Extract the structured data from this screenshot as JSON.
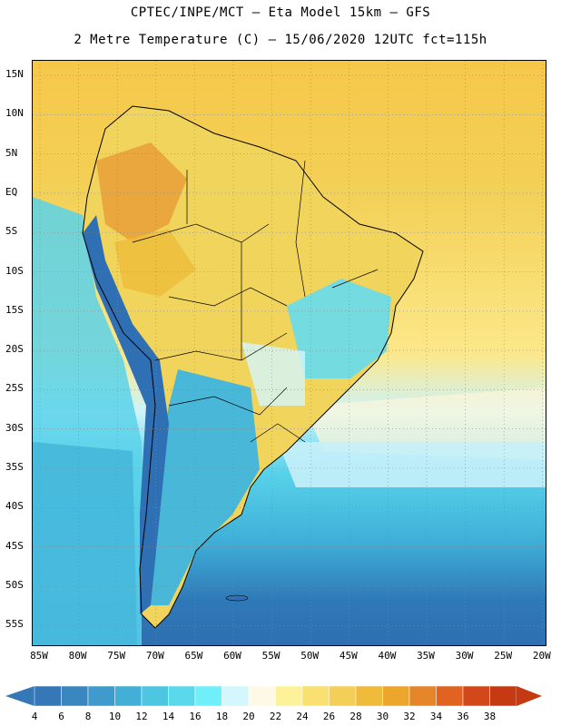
{
  "header": {
    "line1": "CPTEC/INPE/MCT –  Eta Model 15km – GFS",
    "line2": "2 Metre Temperature (C) – 15/06/2020 12UTC fct=115h"
  },
  "map": {
    "lat_labels": [
      "15N",
      "10N",
      "5N",
      "EQ",
      "5S",
      "10S",
      "15S",
      "20S",
      "25S",
      "30S",
      "35S",
      "40S",
      "45S",
      "50S",
      "55S"
    ],
    "lon_labels": [
      "85W",
      "80W",
      "75W",
      "70W",
      "65W",
      "60W",
      "55W",
      "50W",
      "45W",
      "40W",
      "35W",
      "30W",
      "25W",
      "20W"
    ],
    "ocean_bands": [
      {
        "name": "north-warm",
        "color": "#f6c84a"
      },
      {
        "name": "tropical-atlantic",
        "color": "#f3d056"
      },
      {
        "name": "south-atlantic-warm",
        "color": "#fce88a"
      },
      {
        "name": "subtropic",
        "color": "#cdf3fb"
      },
      {
        "name": "mid",
        "color": "#58d3ea"
      },
      {
        "name": "south",
        "color": "#3fafd8"
      },
      {
        "name": "far-south",
        "color": "#2f79b8"
      }
    ],
    "land_colors": {
      "amazon": "#f1d45c",
      "hot-north": "#e9a23a",
      "brazil-cool": "#66dbf0",
      "andes": "#2f6fb4",
      "argentina": "#49b7d8"
    }
  },
  "colorbar": {
    "ticks": [
      "4",
      "6",
      "8",
      "10",
      "12",
      "14",
      "16",
      "18",
      "20",
      "22",
      "24",
      "26",
      "28",
      "30",
      "32",
      "34",
      "36",
      "38"
    ],
    "colors": [
      "#3577b7",
      "#3a87c0",
      "#3f9bcc",
      "#43afd6",
      "#4dc6e2",
      "#5bd9ec",
      "#6ff0f8",
      "#d4f6fd",
      "#fdf9e6",
      "#fdf29a",
      "#f8e073",
      "#f3cf57",
      "#eebb3a",
      "#eca62c",
      "#e6862a",
      "#e06420",
      "#d3481a",
      "#c53a12"
    ]
  }
}
